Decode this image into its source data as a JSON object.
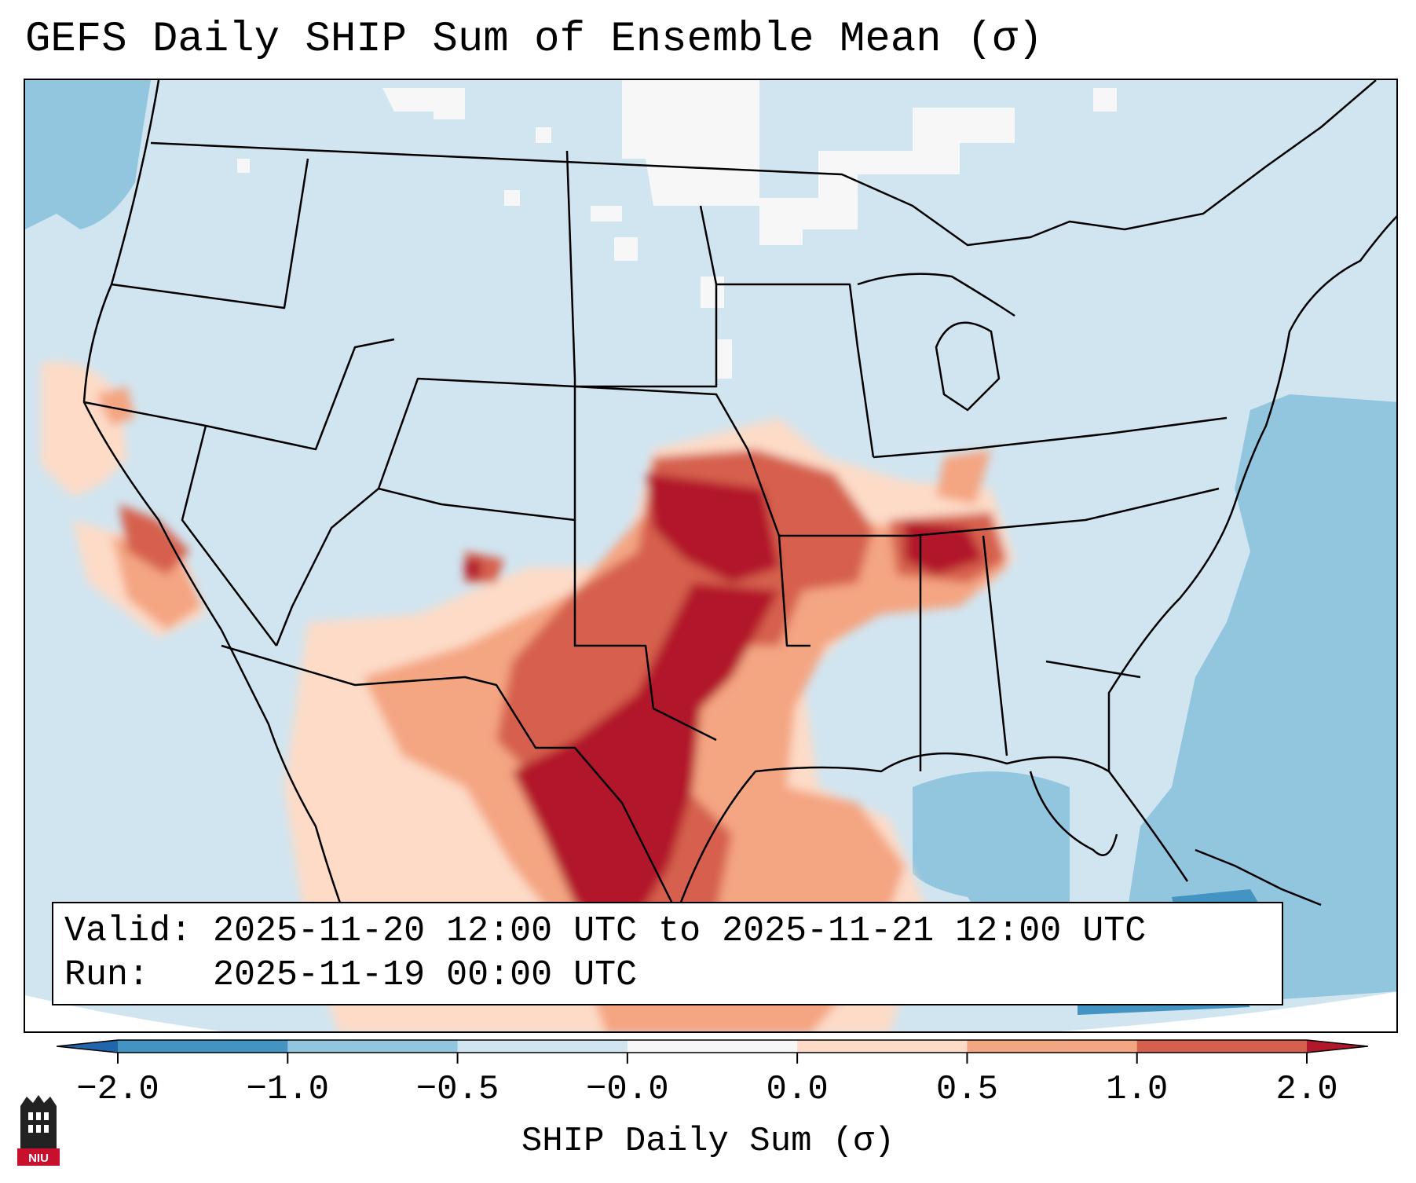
{
  "title": "GEFS Daily SHIP Sum of Ensemble Mean (σ)",
  "info_box": {
    "valid_line": "Valid: 2025-11-20 12:00 UTC to 2025-11-21 12:00 UTC",
    "run_line": "Run:   2025-11-19 00:00 UTC"
  },
  "colorbar": {
    "label": "SHIP Daily Sum (σ)",
    "ticks": [
      "−2.0",
      "−1.0",
      "−0.5",
      "−0.0",
      "0.0",
      "0.5",
      "1.0",
      "2.0"
    ],
    "bin_colors": [
      "#4393c3",
      "#92c5de",
      "#d1e5f0",
      "#f7f7f7",
      "#fddbc7",
      "#f4a582",
      "#d6604d"
    ],
    "under_color": "#2166ac",
    "over_color": "#b2182b",
    "extend": "both"
  },
  "map": {
    "region": "Contiguous United States",
    "projection": "Lambert Conformal",
    "background_color": "#d1e5f0",
    "anomaly_regions": [
      {
        "area": "Northern Plains",
        "category": "-0.0 to 0.0"
      },
      {
        "area": "Southern Canada",
        "category": "-0.0 to 0.0"
      },
      {
        "area": "Atlantic Ocean",
        "category": "-1.0 to -0.5"
      },
      {
        "area": "Gulf of Mexico",
        "category": "-1.0 to -0.5"
      },
      {
        "area": "Pacific Ocean",
        "category": "-1.0 to -0.5"
      },
      {
        "area": "Central California Coast",
        "category": "0.0 to 1.0"
      },
      {
        "area": "Southern California",
        "category": "0.5 to 2.0"
      },
      {
        "area": "Kansas",
        "category": "> 2.0"
      },
      {
        "area": "Oklahoma",
        "category": "> 2.0"
      },
      {
        "area": "Missouri",
        "category": "1.0 to 2.0"
      },
      {
        "area": "Arkansas",
        "category": "0.5 to 2.0"
      },
      {
        "area": "Tennessee",
        "category": "> 2.0"
      },
      {
        "area": "North Alabama",
        "category": "1.0 to 2.0"
      },
      {
        "area": "Central Texas",
        "category": "> 2.0"
      },
      {
        "area": "West Texas",
        "category": "0.5 to 2.0"
      },
      {
        "area": "New Mexico",
        "category": "0.5 to 2.0"
      },
      {
        "area": "Northern Mexico",
        "category": "0.0 to 2.0"
      },
      {
        "area": "Northwest Gulf",
        "category": "0.0 to 1.0"
      },
      {
        "area": "Cuba / Bahamas",
        "category": "-2.0 to -1.0"
      }
    ]
  },
  "logo": {
    "text": "NIU"
  }
}
